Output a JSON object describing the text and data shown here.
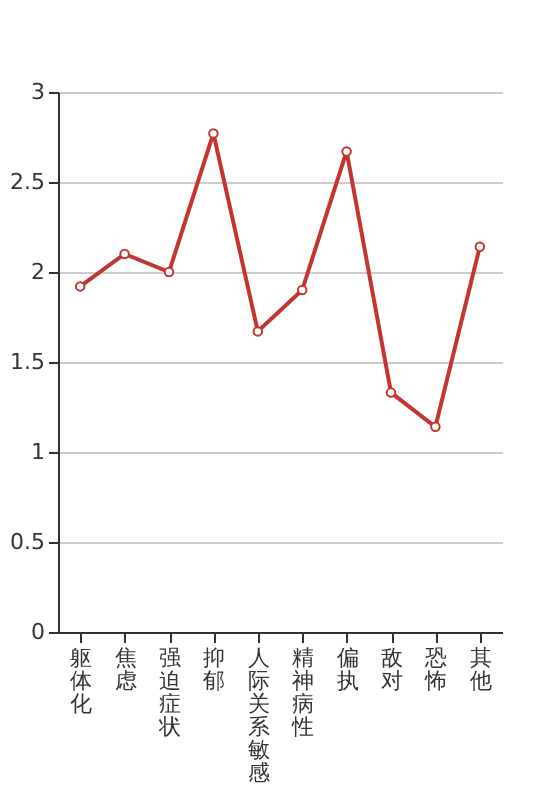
{
  "chart_data": {
    "type": "line",
    "categories": [
      "躯体化",
      "焦虑",
      "强迫症状",
      "抑郁",
      "人际关系敏感",
      "精神病性",
      "偏执",
      "敌对",
      "恐怖",
      "其他"
    ],
    "series": [
      {
        "color": "#c23531",
        "values": [
          1.92,
          2.1,
          2.0,
          2.77,
          1.67,
          1.9,
          2.67,
          1.33,
          1.14,
          2.14
        ]
      }
    ],
    "ylim": [
      0,
      3
    ],
    "yticks": [
      0,
      0.5,
      1,
      1.5,
      2,
      2.5,
      3
    ],
    "grid": "y",
    "marker": "circle",
    "line_style": "solid"
  }
}
